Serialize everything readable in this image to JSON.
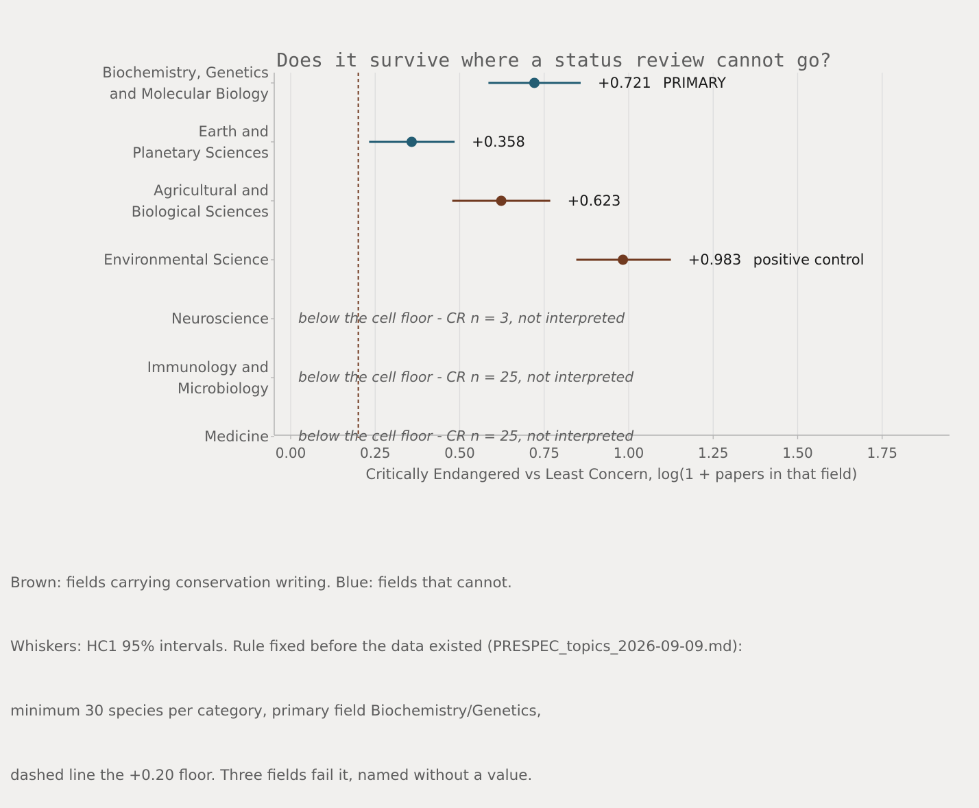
{
  "chart_data": {
    "type": "scatter",
    "title": "Does it survive where a status review cannot go?",
    "xlabel": "Critically Endangered vs Least Concern, log(1 + papers in that field)",
    "ylabel": "",
    "xlim": [
      -0.05,
      1.95
    ],
    "xticks": [
      "0.00",
      "0.25",
      "0.50",
      "0.75",
      "1.00",
      "1.25",
      "1.50",
      "1.75"
    ],
    "xtick_values": [
      0,
      0.25,
      0.5,
      0.75,
      1.0,
      1.25,
      1.5,
      1.75
    ],
    "grid": "vertical",
    "floor": 0.2,
    "colors": {
      "blue": "#235d73",
      "brown": "#713a20",
      "floor": "#713a20",
      "grid": "#dcdcdc",
      "axis": "#b4b4b4",
      "text": "#5e5e5e",
      "label": "#1a1a1a"
    },
    "rows": [
      {
        "label": [
          "Biochemistry, Genetics",
          "and Molecular Biology"
        ],
        "estimate": 0.721,
        "low": 0.585,
        "high": 0.858,
        "group": "blue",
        "value_label": "+0.721",
        "tag": "PRIMARY"
      },
      {
        "label": [
          "Earth and",
          "Planetary Sciences"
        ],
        "estimate": 0.358,
        "low": 0.232,
        "high": 0.485,
        "group": "blue",
        "value_label": "+0.358",
        "tag": ""
      },
      {
        "label": [
          "Agricultural and",
          "Biological Sciences"
        ],
        "estimate": 0.623,
        "low": 0.478,
        "high": 0.768,
        "group": "brown",
        "value_label": "+0.623",
        "tag": ""
      },
      {
        "label": [
          "Environmental Science"
        ],
        "estimate": 0.983,
        "low": 0.845,
        "high": 1.125,
        "group": "brown",
        "value_label": "+0.983",
        "tag": "positive control"
      },
      {
        "label": [
          "Neuroscience"
        ],
        "note": "below the cell floor - CR n = 3, not interpreted"
      },
      {
        "label": [
          "Immunology and",
          "Microbiology"
        ],
        "note": "below the cell floor - CR n = 25, not interpreted"
      },
      {
        "label": [
          "Medicine"
        ],
        "note": "below the cell floor - CR n = 25, not interpreted"
      }
    ]
  },
  "caption": [
    "Brown: fields carrying conservation writing. Blue: fields that cannot.",
    "Whiskers: HC1 95% intervals. Rule fixed before the data existed (PRESPEC_topics_2026-09-09.md):",
    "minimum 30 species per category, primary field Biochemistry/Genetics,",
    "dashed line the +0.20 floor. Three fields fail it, named without a value."
  ]
}
